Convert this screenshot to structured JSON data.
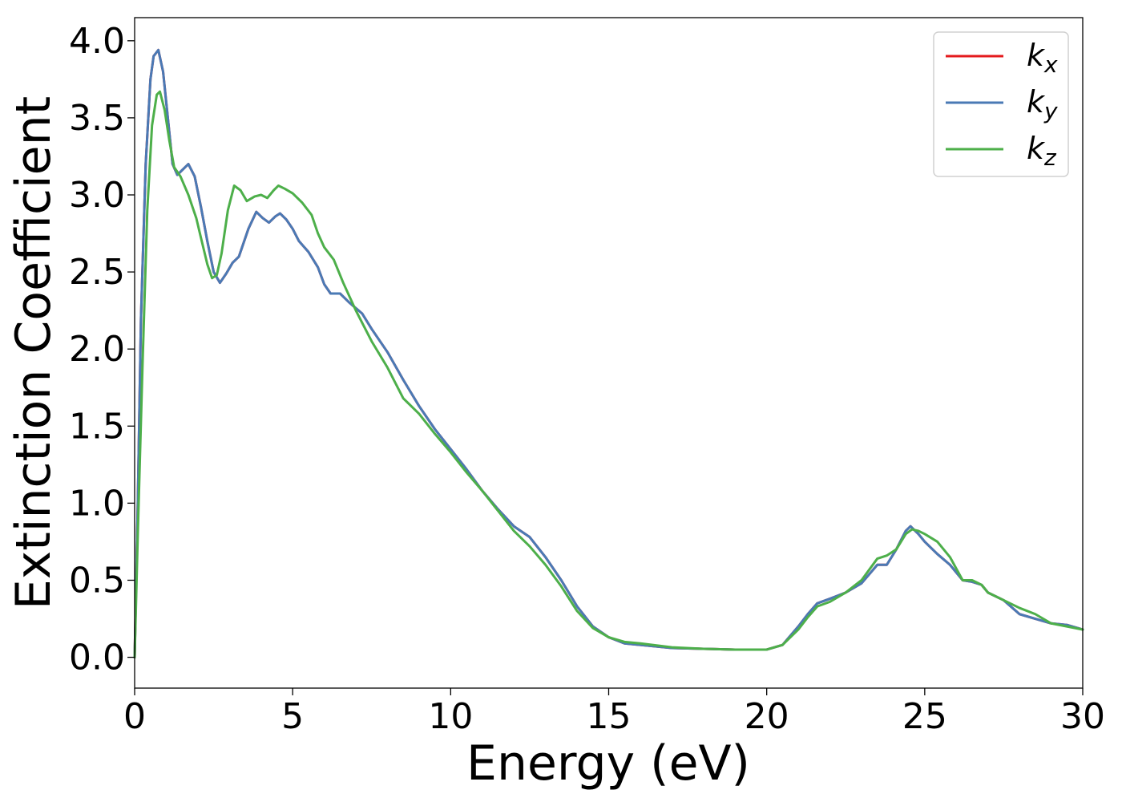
{
  "chart_data": {
    "type": "line",
    "xlabel": "Energy (eV)",
    "ylabel": "Extinction Coefficient",
    "xlim": [
      0,
      30
    ],
    "ylim": [
      -0.2,
      4.15
    ],
    "xticks": [
      0,
      5,
      10,
      15,
      20,
      25,
      30
    ],
    "xtick_labels": [
      "0",
      "5",
      "10",
      "15",
      "20",
      "25",
      "30"
    ],
    "yticks": [
      0.0,
      0.5,
      1.0,
      1.5,
      2.0,
      2.5,
      3.0,
      3.5,
      4.0
    ],
    "ytick_labels": [
      "0.0",
      "0.5",
      "1.0",
      "1.5",
      "2.0",
      "2.5",
      "3.0",
      "3.5",
      "4.0"
    ],
    "grid": false,
    "legend_position": "top-right",
    "series": [
      {
        "name": "k_x",
        "label_main": "k",
        "label_sub": "x",
        "color": "#e41a1c",
        "points": [
          [
            0,
            0
          ],
          [
            0.1,
            1.0
          ],
          [
            0.2,
            2.2
          ],
          [
            0.35,
            3.2
          ],
          [
            0.5,
            3.75
          ],
          [
            0.6,
            3.9
          ],
          [
            0.75,
            3.94
          ],
          [
            0.9,
            3.8
          ],
          [
            1.05,
            3.5
          ],
          [
            1.2,
            3.2
          ],
          [
            1.35,
            3.13
          ],
          [
            1.5,
            3.16
          ],
          [
            1.7,
            3.2
          ],
          [
            1.9,
            3.12
          ],
          [
            2.1,
            2.92
          ],
          [
            2.3,
            2.7
          ],
          [
            2.5,
            2.5
          ],
          [
            2.7,
            2.43
          ],
          [
            2.9,
            2.49
          ],
          [
            3.1,
            2.56
          ],
          [
            3.3,
            2.6
          ],
          [
            3.6,
            2.78
          ],
          [
            3.85,
            2.89
          ],
          [
            4.05,
            2.85
          ],
          [
            4.25,
            2.82
          ],
          [
            4.45,
            2.86
          ],
          [
            4.6,
            2.88
          ],
          [
            4.8,
            2.84
          ],
          [
            5.0,
            2.78
          ],
          [
            5.2,
            2.7
          ],
          [
            5.5,
            2.63
          ],
          [
            5.8,
            2.53
          ],
          [
            6.0,
            2.42
          ],
          [
            6.2,
            2.36
          ],
          [
            6.5,
            2.36
          ],
          [
            6.8,
            2.3
          ],
          [
            7.2,
            2.23
          ],
          [
            7.5,
            2.13
          ],
          [
            8.0,
            1.98
          ],
          [
            8.5,
            1.8
          ],
          [
            9.0,
            1.63
          ],
          [
            9.5,
            1.48
          ],
          [
            10.0,
            1.35
          ],
          [
            10.5,
            1.22
          ],
          [
            11.0,
            1.08
          ],
          [
            11.5,
            0.96
          ],
          [
            12.0,
            0.85
          ],
          [
            12.5,
            0.78
          ],
          [
            13.0,
            0.65
          ],
          [
            13.5,
            0.5
          ],
          [
            14.0,
            0.33
          ],
          [
            14.5,
            0.2
          ],
          [
            15.0,
            0.13
          ],
          [
            15.5,
            0.09
          ],
          [
            16.0,
            0.08
          ],
          [
            17.0,
            0.06
          ],
          [
            18.0,
            0.055
          ],
          [
            19.0,
            0.05
          ],
          [
            20.0,
            0.05
          ],
          [
            20.5,
            0.08
          ],
          [
            21.0,
            0.2
          ],
          [
            21.3,
            0.28
          ],
          [
            21.6,
            0.35
          ],
          [
            22.0,
            0.38
          ],
          [
            22.5,
            0.42
          ],
          [
            23.0,
            0.48
          ],
          [
            23.5,
            0.6
          ],
          [
            23.8,
            0.6
          ],
          [
            24.1,
            0.7
          ],
          [
            24.4,
            0.82
          ],
          [
            24.55,
            0.85
          ],
          [
            24.8,
            0.8
          ],
          [
            25.0,
            0.75
          ],
          [
            25.4,
            0.67
          ],
          [
            25.8,
            0.6
          ],
          [
            26.2,
            0.5
          ],
          [
            26.5,
            0.49
          ],
          [
            26.8,
            0.47
          ],
          [
            27.0,
            0.42
          ],
          [
            27.5,
            0.37
          ],
          [
            28.0,
            0.28
          ],
          [
            28.5,
            0.25
          ],
          [
            29.0,
            0.22
          ],
          [
            29.5,
            0.21
          ],
          [
            30.0,
            0.18
          ]
        ]
      },
      {
        "name": "k_y",
        "label_main": "k",
        "label_sub": "y",
        "color": "#4a7ab5",
        "points": [
          [
            0,
            0
          ],
          [
            0.1,
            1.0
          ],
          [
            0.2,
            2.2
          ],
          [
            0.35,
            3.2
          ],
          [
            0.5,
            3.75
          ],
          [
            0.6,
            3.9
          ],
          [
            0.75,
            3.94
          ],
          [
            0.9,
            3.8
          ],
          [
            1.05,
            3.5
          ],
          [
            1.2,
            3.2
          ],
          [
            1.35,
            3.13
          ],
          [
            1.5,
            3.16
          ],
          [
            1.7,
            3.2
          ],
          [
            1.9,
            3.12
          ],
          [
            2.1,
            2.92
          ],
          [
            2.3,
            2.7
          ],
          [
            2.5,
            2.5
          ],
          [
            2.7,
            2.43
          ],
          [
            2.9,
            2.49
          ],
          [
            3.1,
            2.56
          ],
          [
            3.3,
            2.6
          ],
          [
            3.6,
            2.78
          ],
          [
            3.85,
            2.89
          ],
          [
            4.05,
            2.85
          ],
          [
            4.25,
            2.82
          ],
          [
            4.45,
            2.86
          ],
          [
            4.6,
            2.88
          ],
          [
            4.8,
            2.84
          ],
          [
            5.0,
            2.78
          ],
          [
            5.2,
            2.7
          ],
          [
            5.5,
            2.63
          ],
          [
            5.8,
            2.53
          ],
          [
            6.0,
            2.42
          ],
          [
            6.2,
            2.36
          ],
          [
            6.5,
            2.36
          ],
          [
            6.8,
            2.3
          ],
          [
            7.2,
            2.23
          ],
          [
            7.5,
            2.13
          ],
          [
            8.0,
            1.98
          ],
          [
            8.5,
            1.8
          ],
          [
            9.0,
            1.63
          ],
          [
            9.5,
            1.48
          ],
          [
            10.0,
            1.35
          ],
          [
            10.5,
            1.22
          ],
          [
            11.0,
            1.08
          ],
          [
            11.5,
            0.96
          ],
          [
            12.0,
            0.85
          ],
          [
            12.5,
            0.78
          ],
          [
            13.0,
            0.65
          ],
          [
            13.5,
            0.5
          ],
          [
            14.0,
            0.33
          ],
          [
            14.5,
            0.2
          ],
          [
            15.0,
            0.13
          ],
          [
            15.5,
            0.09
          ],
          [
            16.0,
            0.08
          ],
          [
            17.0,
            0.06
          ],
          [
            18.0,
            0.055
          ],
          [
            19.0,
            0.05
          ],
          [
            20.0,
            0.05
          ],
          [
            20.5,
            0.08
          ],
          [
            21.0,
            0.2
          ],
          [
            21.3,
            0.28
          ],
          [
            21.6,
            0.35
          ],
          [
            22.0,
            0.38
          ],
          [
            22.5,
            0.42
          ],
          [
            23.0,
            0.48
          ],
          [
            23.5,
            0.6
          ],
          [
            23.8,
            0.6
          ],
          [
            24.1,
            0.7
          ],
          [
            24.4,
            0.82
          ],
          [
            24.55,
            0.85
          ],
          [
            24.8,
            0.8
          ],
          [
            25.0,
            0.75
          ],
          [
            25.4,
            0.67
          ],
          [
            25.8,
            0.6
          ],
          [
            26.2,
            0.5
          ],
          [
            26.5,
            0.49
          ],
          [
            26.8,
            0.47
          ],
          [
            27.0,
            0.42
          ],
          [
            27.5,
            0.37
          ],
          [
            28.0,
            0.28
          ],
          [
            28.5,
            0.25
          ],
          [
            29.0,
            0.22
          ],
          [
            29.5,
            0.21
          ],
          [
            30.0,
            0.18
          ]
        ]
      },
      {
        "name": "k_z",
        "label_main": "k",
        "label_sub": "z",
        "color": "#4daf4a",
        "points": [
          [
            0,
            0
          ],
          [
            0.1,
            0.8
          ],
          [
            0.25,
            1.9
          ],
          [
            0.4,
            2.9
          ],
          [
            0.55,
            3.45
          ],
          [
            0.7,
            3.65
          ],
          [
            0.8,
            3.67
          ],
          [
            0.95,
            3.55
          ],
          [
            1.1,
            3.35
          ],
          [
            1.25,
            3.18
          ],
          [
            1.45,
            3.12
          ],
          [
            1.7,
            3.0
          ],
          [
            1.95,
            2.85
          ],
          [
            2.1,
            2.72
          ],
          [
            2.3,
            2.55
          ],
          [
            2.45,
            2.46
          ],
          [
            2.6,
            2.48
          ],
          [
            2.75,
            2.62
          ],
          [
            2.95,
            2.9
          ],
          [
            3.15,
            3.06
          ],
          [
            3.35,
            3.03
          ],
          [
            3.55,
            2.96
          ],
          [
            3.8,
            2.99
          ],
          [
            4.0,
            3.0
          ],
          [
            4.2,
            2.98
          ],
          [
            4.4,
            3.03
          ],
          [
            4.55,
            3.06
          ],
          [
            4.75,
            3.04
          ],
          [
            5.0,
            3.01
          ],
          [
            5.3,
            2.95
          ],
          [
            5.6,
            2.87
          ],
          [
            5.8,
            2.75
          ],
          [
            6.0,
            2.66
          ],
          [
            6.3,
            2.58
          ],
          [
            6.6,
            2.43
          ],
          [
            7.0,
            2.25
          ],
          [
            7.5,
            2.05
          ],
          [
            8.0,
            1.88
          ],
          [
            8.5,
            1.68
          ],
          [
            9.0,
            1.58
          ],
          [
            9.5,
            1.45
          ],
          [
            10.0,
            1.33
          ],
          [
            10.5,
            1.2
          ],
          [
            11.0,
            1.08
          ],
          [
            11.5,
            0.95
          ],
          [
            12.0,
            0.82
          ],
          [
            12.5,
            0.72
          ],
          [
            13.0,
            0.6
          ],
          [
            13.5,
            0.46
          ],
          [
            14.0,
            0.3
          ],
          [
            14.5,
            0.19
          ],
          [
            15.0,
            0.13
          ],
          [
            15.5,
            0.1
          ],
          [
            16.0,
            0.09
          ],
          [
            17.0,
            0.065
          ],
          [
            18.0,
            0.055
          ],
          [
            19.0,
            0.05
          ],
          [
            20.0,
            0.05
          ],
          [
            20.5,
            0.08
          ],
          [
            21.0,
            0.18
          ],
          [
            21.3,
            0.26
          ],
          [
            21.6,
            0.33
          ],
          [
            22.0,
            0.36
          ],
          [
            22.5,
            0.42
          ],
          [
            23.0,
            0.5
          ],
          [
            23.5,
            0.64
          ],
          [
            23.8,
            0.66
          ],
          [
            24.1,
            0.7
          ],
          [
            24.4,
            0.8
          ],
          [
            24.6,
            0.83
          ],
          [
            24.8,
            0.82
          ],
          [
            25.0,
            0.8
          ],
          [
            25.4,
            0.75
          ],
          [
            25.8,
            0.65
          ],
          [
            26.2,
            0.5
          ],
          [
            26.5,
            0.5
          ],
          [
            26.8,
            0.47
          ],
          [
            27.0,
            0.42
          ],
          [
            27.5,
            0.37
          ],
          [
            28.0,
            0.32
          ],
          [
            28.5,
            0.28
          ],
          [
            29.0,
            0.22
          ],
          [
            29.5,
            0.2
          ],
          [
            30.0,
            0.18
          ]
        ]
      }
    ]
  }
}
